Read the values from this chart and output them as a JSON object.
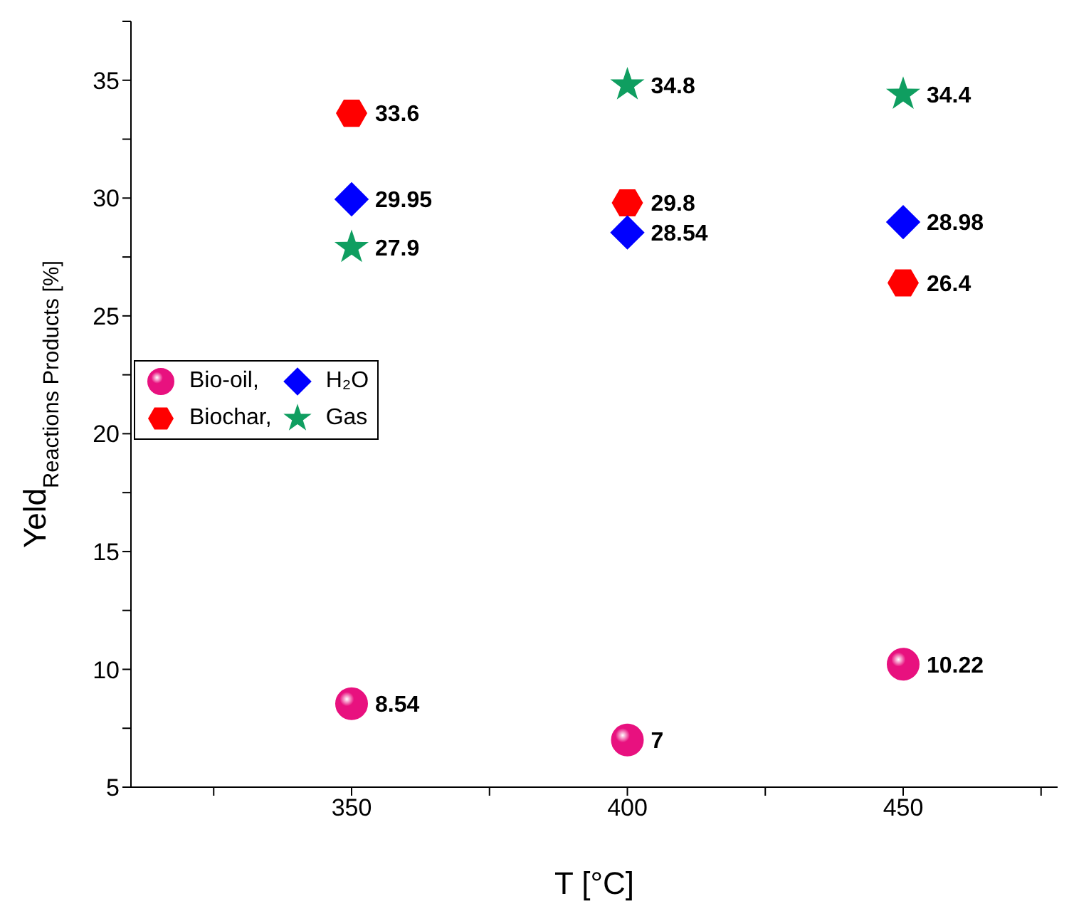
{
  "chart_data": {
    "type": "scatter",
    "xlabel": "T [°C]",
    "ylabel": "Yeld$_{Reactions Products [%]}$",
    "x": [
      350,
      400,
      450
    ],
    "series": [
      {
        "name": "Bio-oil,",
        "color": "#e8117f",
        "marker": "circle",
        "values": [
          8.54,
          7,
          10.22
        ]
      },
      {
        "name": "Biochar,",
        "color": "#ff0000",
        "values": [
          33.6,
          29.8,
          26.4
        ]
      },
      {
        "name": "H₂O",
        "color": "#0000ff",
        "marker": "diamond",
        "values": [
          29.95,
          28.54,
          28.98
        ]
      },
      {
        "name": "Gas",
        "color": "#0f9e60",
        "marker": "star",
        "values": [
          27.9,
          34.8,
          34.4
        ]
      }
    ],
    "xlim": [
      310,
      478
    ],
    "xticks": [
      {
        "value": 325,
        "label": null
      },
      350,
      {
        "value": 375,
        "label": null
      },
      400,
      {
        "value": 425,
        "label": null
      },
      450,
      {
        "value": 475,
        "label": null
      }
    ],
    "ylim": [
      5,
      37.5
    ],
    "yticks": [
      5,
      {
        "value": 7.5,
        "label": null
      },
      10,
      {
        "value": 12.5,
        "label": null
      },
      15,
      {
        "value": 17.5,
        "label": null
      },
      20,
      {
        "value": 22.5,
        "label": null
      },
      25,
      {
        "value": 27.5,
        "label": null
      },
      30,
      {
        "value": 32.5,
        "label": null
      },
      35,
      {
        "value": 37.5,
        "label": null
      }
    ],
    "data_labels": true,
    "legend": "left",
    "grid": false
  }
}
